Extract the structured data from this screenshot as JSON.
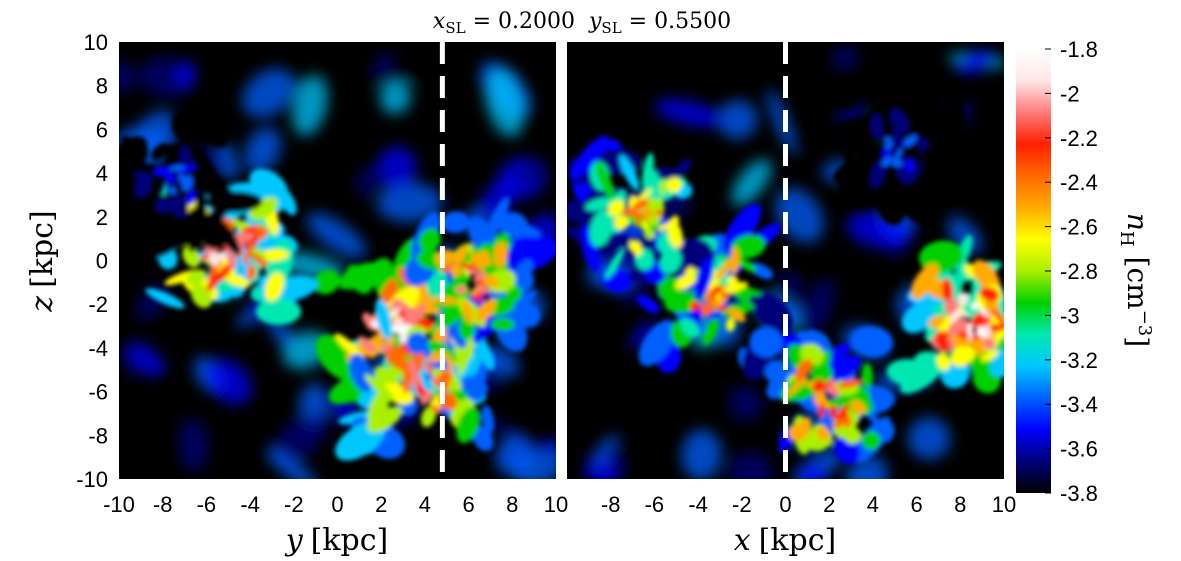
{
  "title": {
    "left_var": "x",
    "left_sub": "SL",
    "left_eq": " = 0.2000",
    "right_var": "y",
    "right_sub": "SL",
    "right_eq": " = 0.5500"
  },
  "colors": {
    "scale": [
      "#000000",
      "#00007a",
      "#0000ff",
      "#0060ff",
      "#00c8ff",
      "#00e8b0",
      "#00d000",
      "#aaf000",
      "#ffff00",
      "#ffaa00",
      "#ff6a00",
      "#ff2000",
      "#ff7a7a",
      "#ffe6e6",
      "#ffffff"
    ],
    "slice_line": "#ffffff"
  },
  "chart_data": [
    {
      "type": "heatmap",
      "panel": "left",
      "xlabel_var": "y",
      "xlabel_unit": "[kpc]",
      "ylabel_var": "z",
      "ylabel_unit": "[kpc]",
      "xlim": [
        -10,
        10
      ],
      "ylim": [
        -10,
        10
      ],
      "xticks": [
        "-10",
        "-8",
        "-6",
        "-4",
        "-2",
        "0",
        "2",
        "4",
        "6",
        "8",
        "10"
      ],
      "yticks": [
        "10",
        "8",
        "6",
        "4",
        "2",
        "0",
        "-2",
        "-4",
        "-6",
        "-8",
        "-10"
      ],
      "slice_line_at": 4.8,
      "dense_regions": [
        {
          "x": 2.5,
          "y": -3.0,
          "value": -1.8
        },
        {
          "x": 4.0,
          "y": -5.5,
          "value": -2.1
        },
        {
          "x": -5.0,
          "y": 0.5,
          "value": -2.0
        },
        {
          "x": 6.0,
          "y": -1.0,
          "value": -2.2
        },
        {
          "x": -7.5,
          "y": 3.5,
          "value": -3.4
        }
      ]
    },
    {
      "type": "heatmap",
      "panel": "right",
      "xlabel_var": "x",
      "xlabel_unit": "[kpc]",
      "xlim": [
        -10,
        10
      ],
      "ylim": [
        -10,
        10
      ],
      "xticks": [
        "-8",
        "-6",
        "-4",
        "-2",
        "0",
        "2",
        "4",
        "6",
        "8",
        "10"
      ],
      "slice_line_at": 0.0,
      "dense_regions": [
        {
          "x": 8.5,
          "y": -2.5,
          "value": -1.9
        },
        {
          "x": -3.5,
          "y": -1.5,
          "value": -2.3
        },
        {
          "x": 2.0,
          "y": -6.5,
          "value": -2.2
        },
        {
          "x": -6.5,
          "y": 2.0,
          "value": -2.4
        },
        {
          "x": 5.0,
          "y": 5.0,
          "value": -3.4
        }
      ]
    },
    {
      "type": "colorbar",
      "label_var": "n",
      "label_sub": "H",
      "label_unit": "[cm",
      "label_exp": "−3",
      "label_close": "]",
      "range": [
        -3.8,
        -1.8
      ],
      "ticks": [
        "-1.8",
        "-2",
        "-2.2",
        "-2.4",
        "-2.6",
        "-2.8",
        "-3",
        "-3.2",
        "-3.4",
        "-3.6",
        "-3.8"
      ]
    }
  ]
}
